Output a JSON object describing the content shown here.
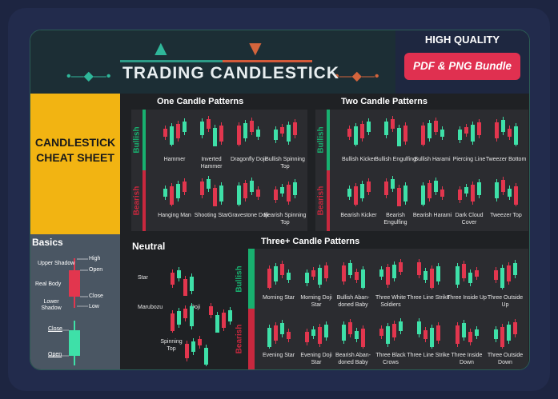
{
  "header": {
    "title": "TRADING CANDLESTICK",
    "promo_label": "HIGH QUALITY",
    "promo_button": "PDF & PNG Bundle"
  },
  "cheat_title": "CANDLESTICK CHEAT SHEET",
  "sections": {
    "one": "One Candle Patterns",
    "two": "Two Candle Patterns",
    "three": "Three+ Candle Patterns",
    "neutral": "Neutral"
  },
  "side_labels": {
    "bullish": "Bullish",
    "bearish": "Bearish"
  },
  "basics": {
    "title": "Basics",
    "labels": [
      "Upper Shadow",
      "High",
      "Open",
      "Real Body",
      "Close",
      "Lower Shadow",
      "Low",
      "Close",
      "Open"
    ]
  },
  "one_bull": [
    "Hammer",
    "Inverted Hammer",
    "Dragonfly Doji",
    "Bullish Spinning Top"
  ],
  "one_bear": [
    "Hanging Man",
    "Shooting Star",
    "Gravestone Doji",
    "Bearish Spinning Top"
  ],
  "two_bull": [
    "Bullish Kicker",
    "Bullish Engulfing",
    "Bullish Harami",
    "Piercing Line",
    "Tweezer Bottom"
  ],
  "two_bear": [
    "Bearish Kicker",
    "Bearish Engulfing",
    "Bearish Harami",
    "Dark Cloud Cover",
    "Tweezer Top"
  ],
  "three_bull": [
    "Morning Star",
    "Morning Doji Star",
    "Bullish Aban- doned Baby",
    "Three White Soldiers",
    "Three Line Strike",
    "Three Inside Up",
    "Three Outside Up"
  ],
  "three_bear": [
    "Evening Star",
    "Evening Doji Star",
    "Bearish Aban- doned Baby",
    "Three Black Crows",
    "Three Line Strike",
    "Three Inside Down",
    "Three Outside Down"
  ],
  "neutral": [
    "Star",
    "Marubozu",
    "Doji",
    "Spinning Top"
  ],
  "colors": {
    "green": "#3ee0a8",
    "red": "#e2364e",
    "teal_bar": "#18b06f",
    "red_bar": "#c8283e",
    "yellow": "#f2b412"
  }
}
